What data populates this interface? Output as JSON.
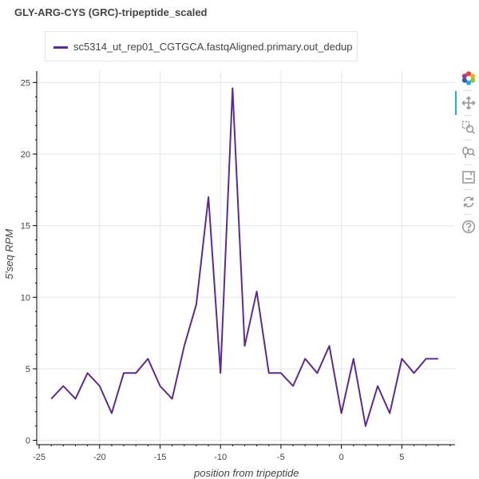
{
  "chart_data": {
    "type": "line",
    "title": "GLY-ARG-CYS (GRC)-tripeptide_scaled",
    "xlabel": "position from tripeptide",
    "ylabel": "5'seq RPM",
    "xlim": [
      -25.2,
      9.4
    ],
    "ylim": [
      -0.3,
      25.8
    ],
    "xticks": [
      -25,
      -20,
      -15,
      -10,
      -5,
      0,
      5
    ],
    "yticks": [
      0,
      5,
      10,
      15,
      20,
      25
    ],
    "grid": true,
    "legend_position": "top-left",
    "series": [
      {
        "name": "sc5314_ut_rep01_CGTGCA.fastqAligned.primary.out_dedup",
        "color": "#5b2d8a",
        "x": [
          -24,
          -23,
          -22,
          -21,
          -20,
          -19,
          -18,
          -17,
          -16,
          -15,
          -14,
          -13,
          -12,
          -11,
          -10,
          -9,
          -8,
          -7,
          -6,
          -5,
          -4,
          -3,
          -2,
          -1,
          0,
          1,
          2,
          3,
          4,
          5,
          6,
          7,
          8
        ],
        "y": [
          2.9,
          3.8,
          2.9,
          4.7,
          3.8,
          1.9,
          4.7,
          4.7,
          5.7,
          3.8,
          2.9,
          6.6,
          9.5,
          17.0,
          4.7,
          24.6,
          6.6,
          10.4,
          4.7,
          4.7,
          3.8,
          5.7,
          4.7,
          6.6,
          1.9,
          5.7,
          1.0,
          3.8,
          1.9,
          5.7,
          4.7,
          5.7,
          5.7
        ]
      }
    ]
  },
  "toolbar": {
    "tools": [
      {
        "name": "bokeh-logo-icon",
        "active": false
      },
      {
        "name": "pan-icon",
        "active": true
      },
      {
        "name": "box-zoom-icon",
        "active": false
      },
      {
        "name": "wheel-zoom-icon",
        "active": false
      },
      {
        "name": "save-icon",
        "active": false
      },
      {
        "name": "reset-icon",
        "active": false
      },
      {
        "name": "help-icon",
        "active": false
      }
    ]
  }
}
